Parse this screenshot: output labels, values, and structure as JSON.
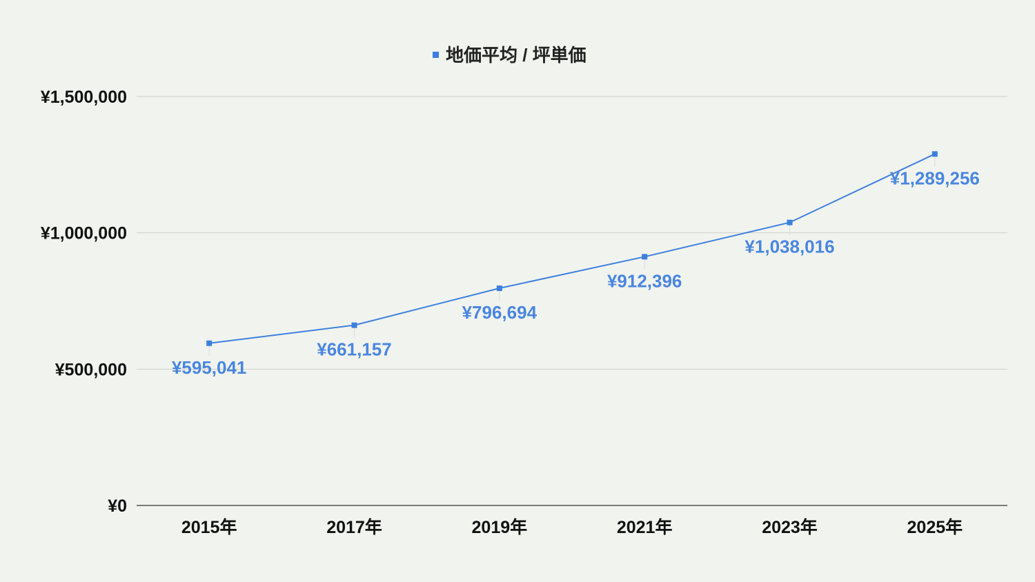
{
  "chart_data": {
    "type": "line",
    "categories": [
      "2015年",
      "2017年",
      "2019年",
      "2021年",
      "2023年",
      "2025年"
    ],
    "series": [
      {
        "name": "地価平均 / 坪単価",
        "values": [
          595041,
          661157,
          796694,
          912396,
          1038016,
          1289256
        ],
        "labels": [
          "¥595,041",
          "¥661,157",
          "¥796,694",
          "¥912,396",
          "¥1,038,016",
          "¥1,289,256"
        ]
      }
    ],
    "yticks": [
      0,
      500000,
      1000000,
      1500000
    ],
    "ytick_labels": [
      "¥0",
      "¥500,000",
      "¥1,000,000",
      "¥1,500,000"
    ],
    "ylim": [
      0,
      1500000
    ],
    "grid": true,
    "legend_position": "top-center",
    "colors": {
      "background": "#f1f3ee",
      "series": "#3d7fe0",
      "label": "#4a86e0",
      "grid": "#cfd1cc",
      "axis": "#333333",
      "text": "#111111"
    }
  }
}
